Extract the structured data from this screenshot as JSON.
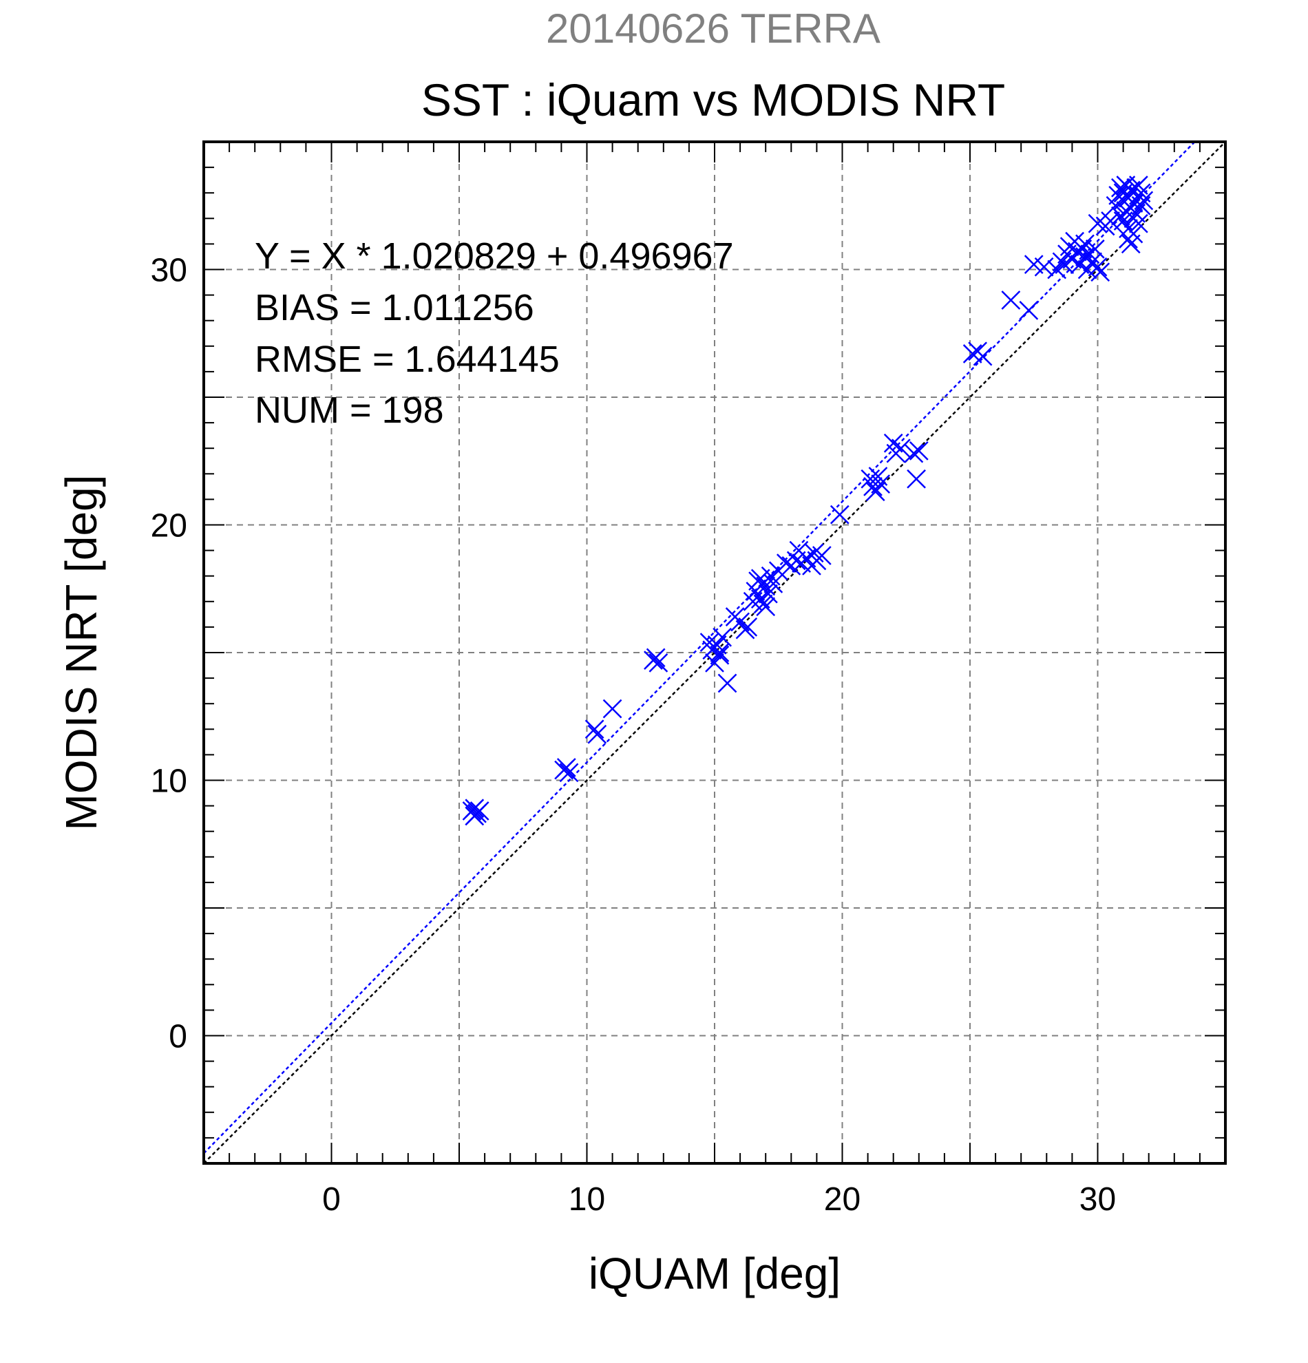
{
  "chart_data": {
    "type": "scatter",
    "supertitle": "20140626 TERRA",
    "title": "SST : iQuam vs MODIS NRT",
    "xlabel": "iQUAM [deg]",
    "ylabel": "MODIS NRT [deg]",
    "xlim": [
      -5,
      35
    ],
    "ylim": [
      -5,
      35
    ],
    "major_ticks": [
      0,
      10,
      20,
      30
    ],
    "minor_step": 1,
    "grid": true,
    "stats": [
      "Y = X * 1.020829 + 0.496967",
      "BIAS = 1.011256",
      "RMSE = 1.644145",
      "NUM = 198"
    ],
    "fit": {
      "slope": 1.020829,
      "intercept": 0.496967
    },
    "colors": {
      "points": "#0000ff",
      "fit_line": "#0000ff",
      "identity_line": "#000000",
      "grid": "#808080",
      "supertitle": "#808080"
    },
    "points": [
      [
        5.5,
        8.8
      ],
      [
        5.6,
        8.9
      ],
      [
        5.7,
        8.7
      ],
      [
        5.8,
        8.8
      ],
      [
        5.6,
        8.6
      ],
      [
        9.1,
        10.4
      ],
      [
        9.2,
        10.5
      ],
      [
        9.3,
        10.3
      ],
      [
        10.3,
        12.0
      ],
      [
        10.4,
        11.8
      ],
      [
        11.0,
        12.8
      ],
      [
        12.6,
        14.7
      ],
      [
        12.7,
        14.8
      ],
      [
        12.8,
        14.6
      ],
      [
        14.8,
        15.4
      ],
      [
        14.9,
        15.1
      ],
      [
        15.0,
        14.6
      ],
      [
        15.1,
        15.3
      ],
      [
        15.2,
        15.0
      ],
      [
        15.3,
        15.6
      ],
      [
        15.5,
        13.8
      ],
      [
        15.2,
        14.9
      ],
      [
        15.8,
        16.4
      ],
      [
        16.0,
        16.2
      ],
      [
        16.2,
        15.9
      ],
      [
        16.3,
        16.0
      ],
      [
        16.5,
        17.0
      ],
      [
        16.6,
        17.4
      ],
      [
        16.7,
        17.8
      ],
      [
        16.8,
        17.1
      ],
      [
        16.9,
        16.9
      ],
      [
        17.0,
        17.6
      ],
      [
        17.1,
        17.3
      ],
      [
        17.2,
        18.0
      ],
      [
        17.3,
        17.7
      ],
      [
        17.0,
        16.8
      ],
      [
        16.8,
        17.9
      ],
      [
        17.5,
        18.2
      ],
      [
        17.8,
        18.5
      ],
      [
        18.0,
        18.4
      ],
      [
        18.2,
        18.6
      ],
      [
        18.3,
        19.0
      ],
      [
        18.4,
        18.5
      ],
      [
        18.6,
        18.7
      ],
      [
        18.8,
        18.4
      ],
      [
        18.9,
        18.9
      ],
      [
        19.0,
        18.6
      ],
      [
        19.2,
        18.8
      ],
      [
        19.9,
        20.4
      ],
      [
        21.1,
        21.8
      ],
      [
        21.2,
        21.5
      ],
      [
        21.3,
        21.3
      ],
      [
        21.4,
        21.9
      ],
      [
        21.5,
        21.6
      ],
      [
        22.0,
        23.2
      ],
      [
        22.1,
        22.8
      ],
      [
        22.3,
        23.0
      ],
      [
        22.8,
        22.8
      ],
      [
        22.9,
        21.8
      ],
      [
        23.0,
        22.9
      ],
      [
        25.1,
        26.7
      ],
      [
        25.3,
        26.8
      ],
      [
        25.5,
        26.6
      ],
      [
        26.6,
        28.8
      ],
      [
        27.3,
        28.4
      ],
      [
        27.5,
        30.2
      ],
      [
        27.9,
        30.1
      ],
      [
        28.4,
        30.0
      ],
      [
        28.6,
        30.3
      ],
      [
        28.8,
        30.6
      ],
      [
        28.9,
        30.9
      ],
      [
        29.0,
        30.4
      ],
      [
        29.1,
        31.1
      ],
      [
        29.2,
        30.7
      ],
      [
        29.3,
        30.2
      ],
      [
        29.4,
        30.8
      ],
      [
        29.5,
        30.5
      ],
      [
        29.6,
        30.0
      ],
      [
        29.7,
        30.6
      ],
      [
        29.8,
        30.3
      ],
      [
        29.9,
        30.8
      ],
      [
        30.0,
        30.1
      ],
      [
        30.1,
        29.9
      ],
      [
        29.5,
        31.0
      ],
      [
        28.7,
        30.2
      ],
      [
        30.0,
        31.8
      ],
      [
        30.3,
        31.7
      ],
      [
        30.5,
        31.9
      ],
      [
        30.7,
        32.5
      ],
      [
        30.8,
        32.9
      ],
      [
        30.9,
        33.2
      ],
      [
        30.9,
        32.1
      ],
      [
        31.0,
        32.7
      ],
      [
        31.0,
        33.0
      ],
      [
        31.1,
        32.3
      ],
      [
        31.1,
        33.3
      ],
      [
        31.2,
        31.6
      ],
      [
        31.2,
        32.8
      ],
      [
        31.2,
        31.2
      ],
      [
        31.3,
        32.4
      ],
      [
        31.3,
        33.1
      ],
      [
        31.3,
        31.0
      ],
      [
        31.4,
        32.6
      ],
      [
        31.4,
        32.0
      ],
      [
        31.5,
        33.2
      ],
      [
        31.5,
        32.2
      ],
      [
        31.6,
        31.8
      ],
      [
        31.6,
        32.9
      ],
      [
        31.7,
        32.5
      ],
      [
        31.7,
        33.0
      ],
      [
        31.0,
        31.9
      ],
      [
        31.4,
        31.4
      ],
      [
        31.8,
        32.7
      ],
      [
        31.6,
        33.3
      ]
    ]
  }
}
